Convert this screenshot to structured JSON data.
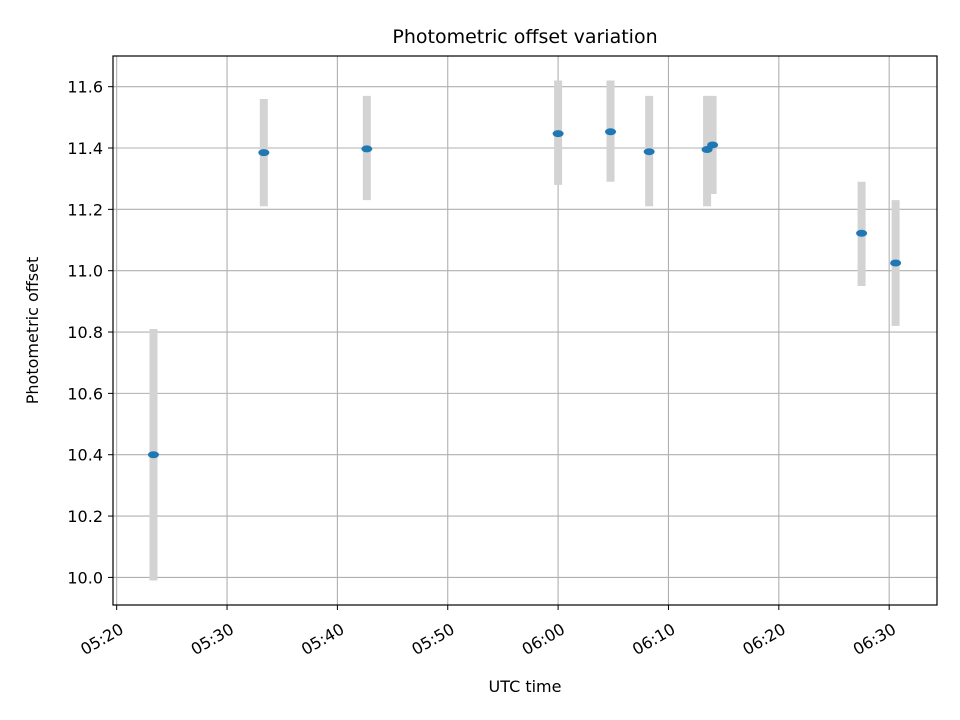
{
  "chart_data": {
    "type": "scatter",
    "title": "Photometric offset variation",
    "xlabel": "UTC time",
    "ylabel": "Photometric offset",
    "grid": true,
    "legend": "none",
    "x_axis_kind": "time",
    "xlim": [
      "05:19:40",
      "06:34:20"
    ],
    "ylim": [
      9.91,
      11.7
    ],
    "x_ticks": [
      "05:20",
      "05:30",
      "05:40",
      "05:50",
      "06:00",
      "06:10",
      "06:20",
      "06:30"
    ],
    "y_ticks": [
      "10.0",
      "10.2",
      "10.4",
      "10.6",
      "10.8",
      "11.0",
      "11.2",
      "11.4",
      "11.6"
    ],
    "colors": {
      "point": "#1f77b4",
      "errorbar": "#d3d3d3",
      "grid": "#b0b0b0",
      "axis": "#000000"
    },
    "points": [
      {
        "x": "05:23:20",
        "y": 10.4,
        "ylow": 9.99,
        "yhigh": 10.81
      },
      {
        "x": "05:33:20",
        "y": 11.385,
        "ylow": 11.21,
        "yhigh": 11.56
      },
      {
        "x": "05:42:40",
        "y": 11.397,
        "ylow": 11.23,
        "yhigh": 11.57
      },
      {
        "x": "06:00:00",
        "y": 11.447,
        "ylow": 11.28,
        "yhigh": 11.62
      },
      {
        "x": "06:04:45",
        "y": 11.453,
        "ylow": 11.29,
        "yhigh": 11.62
      },
      {
        "x": "06:08:15",
        "y": 11.388,
        "ylow": 11.21,
        "yhigh": 11.57
      },
      {
        "x": "06:13:30",
        "y": 11.395,
        "ylow": 11.21,
        "yhigh": 11.57
      },
      {
        "x": "06:14:00",
        "y": 11.41,
        "ylow": 11.25,
        "yhigh": 11.57
      },
      {
        "x": "06:27:30",
        "y": 11.122,
        "ylow": 10.95,
        "yhigh": 11.29
      },
      {
        "x": "06:30:35",
        "y": 11.025,
        "ylow": 10.82,
        "yhigh": 11.23
      }
    ]
  }
}
